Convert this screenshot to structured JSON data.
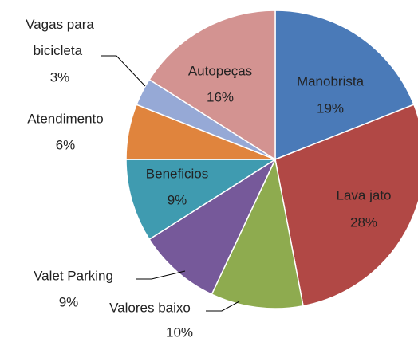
{
  "chart_data": {
    "type": "pie",
    "categories": [
      "Manobrista",
      "Lava jato",
      "Valores baixo",
      "Valet Parking",
      "Beneficios",
      "Atendimento",
      "Vagas para bicicleta",
      "Autopeças"
    ],
    "values": [
      19,
      28,
      10,
      9,
      9,
      6,
      3,
      16
    ],
    "value_labels": [
      "19%",
      "28%",
      "10%",
      "9%",
      "9%",
      "6%",
      "3%",
      "16%"
    ],
    "colors": [
      "#4a7ab8",
      "#b14845",
      "#8eab4f",
      "#76599a",
      "#3f9bb0",
      "#e0843d",
      "#96a9d6",
      "#d39391"
    ]
  }
}
